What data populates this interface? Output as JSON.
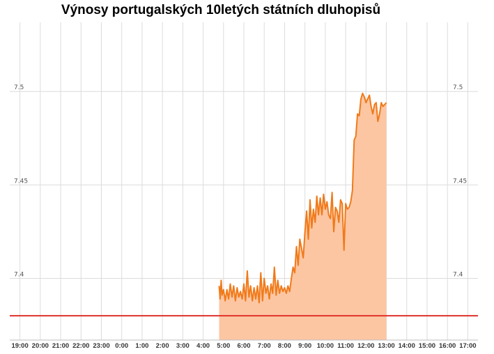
{
  "chart_data": {
    "type": "area",
    "title": "Výnosy portugalských 10letých státních dluhopisů",
    "xlabel": "",
    "ylabel": "",
    "x_ticks": [
      "19:00",
      "20:00",
      "21:00",
      "22:00",
      "23:00",
      "0:00",
      "1:00",
      "2:00",
      "3:00",
      "4:00",
      "5:00",
      "6:00",
      "7:00",
      "8:00",
      "9:00",
      "10:00",
      "11:00",
      "12:00",
      "13:00",
      "14:00",
      "15:00",
      "16:00",
      "17:00"
    ],
    "x_range": [
      "18:30",
      "17:30"
    ],
    "y_ticks": [
      "7.4",
      "7.45",
      "7.5"
    ],
    "y_range": [
      7.367,
      7.537
    ],
    "grid": true,
    "legend": "none",
    "colors": {
      "line": "#f07a1a",
      "fill": "#fcc6a3",
      "grid": "#dcdcdc",
      "reference_line": "#e0312a"
    },
    "reference_line": 7.38,
    "series": [
      {
        "x": [
          "4:47",
          "4:50",
          "4:53",
          "4:56",
          "5:00",
          "5:05",
          "5:10",
          "5:15",
          "5:20",
          "5:25",
          "5:30",
          "5:35",
          "5:40",
          "5:45",
          "5:50",
          "5:55",
          "6:00",
          "6:05",
          "6:10",
          "6:15",
          "6:20",
          "6:25",
          "6:30",
          "6:35",
          "6:40",
          "6:45",
          "6:50",
          "6:55",
          "7:00",
          "7:05",
          "7:10",
          "7:15",
          "7:20",
          "7:25",
          "7:30",
          "7:35",
          "7:40",
          "7:45",
          "7:50",
          "7:55",
          "8:00",
          "8:05",
          "8:10",
          "8:15",
          "8:20",
          "8:25",
          "8:30",
          "8:35",
          "8:40",
          "8:45",
          "8:50",
          "8:55",
          "9:00",
          "9:05",
          "9:10",
          "9:15",
          "9:20",
          "9:25",
          "9:30",
          "9:35",
          "9:40",
          "9:45",
          "9:50",
          "9:55",
          "10:00",
          "10:05",
          "10:10",
          "10:15",
          "10:20",
          "10:25",
          "10:30",
          "10:35",
          "10:40",
          "10:45",
          "10:50",
          "10:55",
          "11:00",
          "11:05",
          "11:10",
          "11:15",
          "11:20",
          "11:25",
          "11:30",
          "11:35",
          "11:40",
          "11:45",
          "11:50",
          "11:55",
          "12:00",
          "12:05",
          "12:10",
          "12:15",
          "12:20",
          "12:25",
          "12:30",
          "12:35",
          "12:40",
          "12:45",
          "12:50",
          "12:55",
          "13:00"
        ],
        "y": [
          7.396,
          7.389,
          7.399,
          7.391,
          7.394,
          7.388,
          7.394,
          7.389,
          7.397,
          7.39,
          7.396,
          7.388,
          7.395,
          7.39,
          7.393,
          7.389,
          7.397,
          7.388,
          7.404,
          7.39,
          7.396,
          7.388,
          7.395,
          7.389,
          7.396,
          7.387,
          7.403,
          7.388,
          7.4,
          7.392,
          7.396,
          7.389,
          7.397,
          7.392,
          7.406,
          7.391,
          7.399,
          7.392,
          7.396,
          7.393,
          7.395,
          7.392,
          7.396,
          7.393,
          7.4,
          7.406,
          7.403,
          7.417,
          7.407,
          7.421,
          7.416,
          7.411,
          7.425,
          7.436,
          7.421,
          7.442,
          7.427,
          7.437,
          7.43,
          7.444,
          7.434,
          7.443,
          7.434,
          7.445,
          7.437,
          7.441,
          7.434,
          7.432,
          7.446,
          7.425,
          7.438,
          7.436,
          7.43,
          7.442,
          7.44,
          7.415,
          7.44,
          7.437,
          7.438,
          7.441,
          7.447,
          7.474,
          7.476,
          7.488,
          7.487,
          7.496,
          7.499,
          7.497,
          7.494,
          7.496,
          7.498,
          7.492,
          7.488,
          7.493,
          7.494,
          7.484,
          7.488,
          7.494,
          7.492,
          7.493,
          7.494
        ]
      }
    ]
  }
}
